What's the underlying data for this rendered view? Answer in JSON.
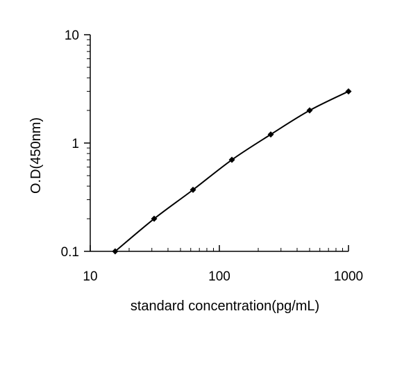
{
  "chart_data": {
    "type": "line",
    "title": "",
    "xlabel": "standard concentration(pg/mL)",
    "ylabel": "O.D(450nm)",
    "xscale": "log",
    "yscale": "log",
    "xlim": [
      10,
      1000
    ],
    "ylim": [
      0.1,
      10
    ],
    "xticks": [
      "10",
      "100",
      "1000"
    ],
    "yticks": [
      "0.1",
      "1",
      "10"
    ],
    "grid": false,
    "legend": "none",
    "markers": "diamond",
    "color": "#000000",
    "x": [
      15.6,
      31.25,
      62.5,
      125,
      250,
      500,
      1000
    ],
    "y": [
      0.1,
      0.2,
      0.37,
      0.7,
      1.2,
      2.0,
      3.0
    ]
  }
}
